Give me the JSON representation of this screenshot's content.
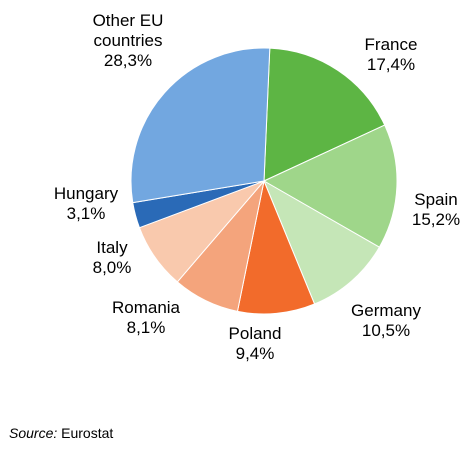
{
  "chart_data": {
    "type": "pie",
    "title": "",
    "slices": [
      {
        "label": [
          "France"
        ],
        "value": 17.4,
        "value_label": "17,4%",
        "color": "#5db544"
      },
      {
        "label": [
          "Spain"
        ],
        "value": 15.2,
        "value_label": "15,2%",
        "color": "#9fd68a"
      },
      {
        "label": [
          "Germany"
        ],
        "value": 10.5,
        "value_label": "10,5%",
        "color": "#c5e6b7"
      },
      {
        "label": [
          "Poland"
        ],
        "value": 9.4,
        "value_label": "9,4%",
        "color": "#f26b2b"
      },
      {
        "label": [
          "Romania"
        ],
        "value": 8.1,
        "value_label": "8,1%",
        "color": "#f4a47c"
      },
      {
        "label": [
          "Italy"
        ],
        "value": 8.0,
        "value_label": "8,0%",
        "color": "#f9c9ad"
      },
      {
        "label": [
          "Hungary"
        ],
        "value": 3.1,
        "value_label": "3,1%",
        "color": "#2a6ab7"
      },
      {
        "label": [
          "Other EU",
          "countries"
        ],
        "value": 28.3,
        "value_label": "28,3%",
        "color": "#72a7e0"
      }
    ]
  },
  "source": {
    "label": "Source:",
    "text": " Eurostat"
  }
}
